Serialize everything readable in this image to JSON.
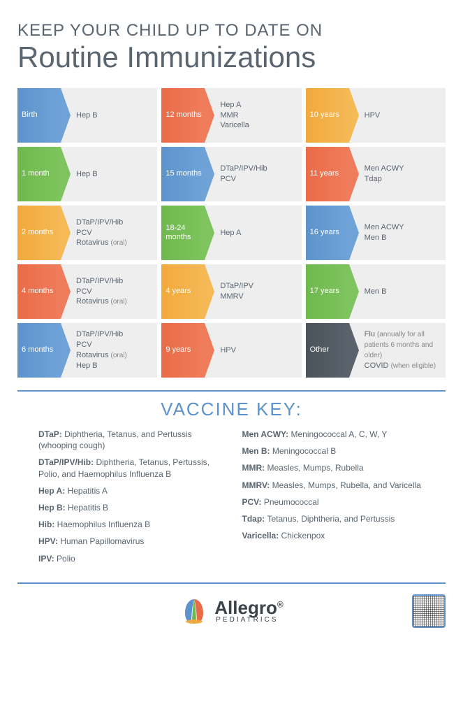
{
  "title_small": "KEEP YOUR CHILD UP TO DATE ON",
  "title_large": "Routine Immunizations",
  "colors": {
    "blue": "#5d93cc",
    "green": "#6fb84e",
    "yellow": "#f2a93c",
    "orange": "#ea6b47",
    "gray": "#4a525a",
    "text": "#5a6570",
    "cell_bg": "#eeeeee"
  },
  "schedule": [
    {
      "age": "Birth",
      "color": "blue",
      "lines": [
        "Hep B"
      ]
    },
    {
      "age": "12 months",
      "color": "orange",
      "lines": [
        "Hep A",
        "MMR",
        "Varicella"
      ]
    },
    {
      "age": "10 years",
      "color": "yellow",
      "lines": [
        "HPV"
      ]
    },
    {
      "age": "1 month",
      "color": "green",
      "lines": [
        "Hep B"
      ]
    },
    {
      "age": "15 months",
      "color": "blue",
      "lines": [
        "DTaP/IPV/Hib",
        "PCV"
      ]
    },
    {
      "age": "11 years",
      "color": "orange",
      "lines": [
        "Men ACWY",
        "Tdap"
      ]
    },
    {
      "age": "2 months",
      "color": "yellow",
      "lines": [
        "DTaP/IPV/Hib",
        "PCV",
        "Rotavirus <span class=\"sub\">(oral)</span>"
      ]
    },
    {
      "age": "18-24 months",
      "color": "green",
      "lines": [
        "Hep A"
      ]
    },
    {
      "age": "16 years",
      "color": "blue",
      "lines": [
        "Men ACWY",
        "Men B"
      ]
    },
    {
      "age": "4 months",
      "color": "orange",
      "lines": [
        "DTaP/IPV/Hib",
        "PCV",
        "Rotavirus <span class=\"sub\">(oral)</span>"
      ]
    },
    {
      "age": "4 years",
      "color": "yellow",
      "lines": [
        "DTaP/IPV",
        "MMRV"
      ]
    },
    {
      "age": "17 years",
      "color": "green",
      "lines": [
        "Men B"
      ]
    },
    {
      "age": "6 months",
      "color": "blue",
      "lines": [
        "DTaP/IPV/Hib",
        "PCV",
        "Rotavirus <span class=\"sub\">(oral)</span>",
        "Hep B"
      ]
    },
    {
      "age": "9 years",
      "color": "orange",
      "lines": [
        "HPV"
      ]
    },
    {
      "age": "Other",
      "color": "gray",
      "lines": [
        "Flu <span class=\"sub\">(annually for all patients 6 months and older)</span>",
        "COVID <span class=\"sub\">(when eligible)</span>"
      ]
    }
  ],
  "key_title": "VACCINE KEY:",
  "key_left": [
    {
      "term": "DTaP:",
      "def": "Diphtheria, Tetanus, and Pertussis (whooping cough)"
    },
    {
      "term": "DTaP/IPV/Hib:",
      "def": "Diphtheria, Tetanus, Pertussis, Polio, and Haemophilus Influenza B"
    },
    {
      "term": "Hep A:",
      "def": "Hepatitis A"
    },
    {
      "term": "Hep B:",
      "def": "Hepatitis B"
    },
    {
      "term": "Hib:",
      "def": "Haemophilus Influenza B"
    },
    {
      "term": "HPV:",
      "def": "Human Papillomavirus"
    },
    {
      "term": "IPV:",
      "def": "Polio"
    }
  ],
  "key_right": [
    {
      "term": "Men ACWY:",
      "def": "Meningococcal A, C, W, Y"
    },
    {
      "term": "Men B:",
      "def": "Meningococcal B"
    },
    {
      "term": "MMR:",
      "def": "Measles, Mumps, Rubella"
    },
    {
      "term": "MMRV:",
      "def": "Measles, Mumps, Rubella, and Varicella"
    },
    {
      "term": "PCV:",
      "def": "Pneumococcal"
    },
    {
      "term": "Tdap:",
      "def": "Tetanus, Diphtheria, and Pertussis"
    },
    {
      "term": "Varicella:",
      "def": "Chickenpox"
    }
  ],
  "logo": {
    "name": "Allegro",
    "sub": "PEDIATRICS"
  }
}
